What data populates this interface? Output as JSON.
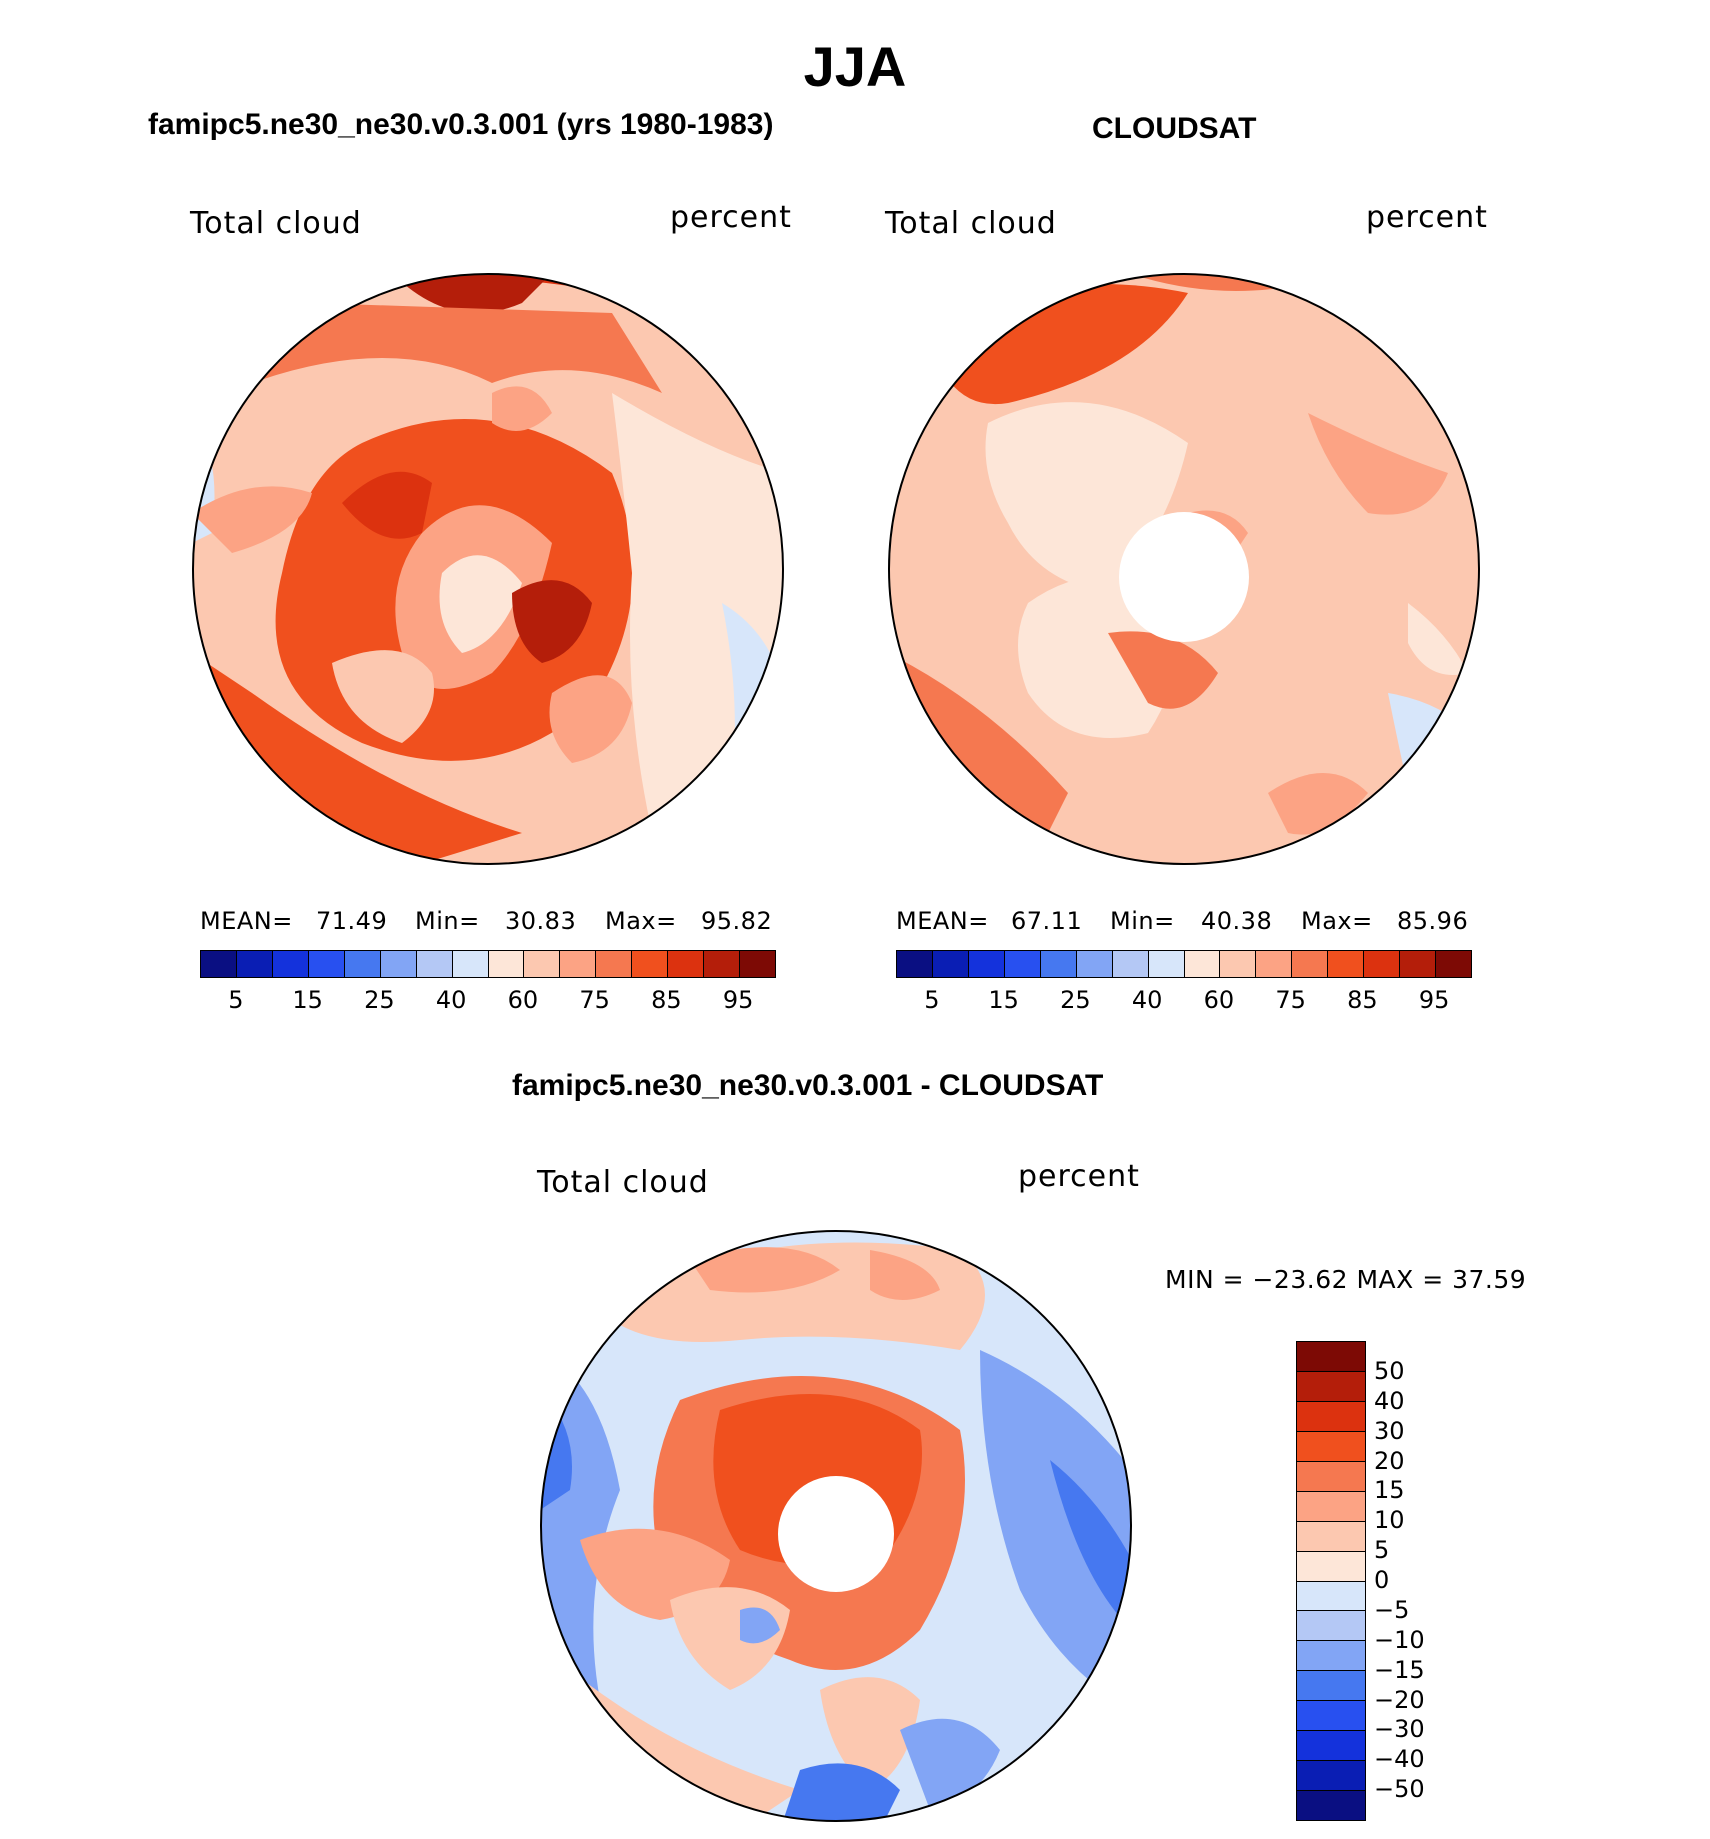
{
  "header": {
    "title": "JJA"
  },
  "panel_left": {
    "title": "famipc5.ne30_ne30.v0.3.001 (yrs 1980-1983)",
    "variable": "Total cloud",
    "units": "percent",
    "mean_label": "MEAN=",
    "mean": "71.49",
    "min_label": "Min=",
    "min": "30.83",
    "max_label": "Max=",
    "max": "95.82"
  },
  "panel_right": {
    "title": "CLOUDSAT",
    "variable": "Total cloud",
    "units": "percent",
    "mean_label": "MEAN=",
    "mean": "67.11",
    "min_label": "Min=",
    "min": "40.38",
    "max_label": "Max=",
    "max": "85.96"
  },
  "panel_diff": {
    "title": "famipc5.ne30_ne30.v0.3.001 - CLOUDSAT",
    "variable": "Total cloud",
    "units": "percent",
    "minmax_text": "MIN = −23.62 MAX =   37.59"
  },
  "colors": {
    "abs_scale": [
      "#0a0f82",
      "#0a1eb4",
      "#1432dc",
      "#2850f0",
      "#4678f0",
      "#82a5f5",
      "#b4c8f5",
      "#d7e6fa",
      "#fde6d8",
      "#fcc8b0",
      "#fca384",
      "#f57850",
      "#f0501e",
      "#dc320f",
      "#b41e0a",
      "#7d0a05"
    ],
    "diff_scale": [
      "#0a0f82",
      "#0a1eb4",
      "#1432dc",
      "#2850f0",
      "#4678f0",
      "#82a5f5",
      "#b4c8f5",
      "#d7e6fa",
      "#fde6d8",
      "#fcc8b0",
      "#fca384",
      "#f57850",
      "#f0501e",
      "#dc320f",
      "#b41e0a",
      "#7d0a05"
    ]
  },
  "chart_data": [
    {
      "type": "heatmap",
      "projection": "north polar stereographic",
      "title": "famipc5.ne30_ne30.v0.3.001 (yrs 1980-1983)",
      "variable": "Total cloud",
      "units": "percent",
      "levels": [
        5,
        10,
        15,
        20,
        25,
        30,
        40,
        50,
        60,
        70,
        75,
        80,
        85,
        90,
        95
      ],
      "tick_labels": [
        "5",
        "15",
        "25",
        "40",
        "60",
        "75",
        "85",
        "95"
      ],
      "mean": 71.49,
      "min": 30.83,
      "max": 95.82
    },
    {
      "type": "heatmap",
      "projection": "north polar stereographic",
      "title": "CLOUDSAT",
      "variable": "Total cloud",
      "units": "percent",
      "levels": [
        5,
        10,
        15,
        20,
        25,
        30,
        40,
        50,
        60,
        70,
        75,
        80,
        85,
        90,
        95
      ],
      "tick_labels": [
        "5",
        "15",
        "25",
        "40",
        "60",
        "75",
        "85",
        "95"
      ],
      "mean": 67.11,
      "min": 40.38,
      "max": 85.96
    },
    {
      "type": "heatmap",
      "projection": "north polar stereographic",
      "title": "famipc5.ne30_ne30.v0.3.001 - CLOUDSAT",
      "variable": "Total cloud",
      "units": "percent",
      "levels": [
        -50,
        -40,
        -30,
        -20,
        -15,
        -10,
        -5,
        0,
        5,
        10,
        15,
        20,
        30,
        40,
        50
      ],
      "tick_labels": [
        "50",
        "40",
        "30",
        "20",
        "15",
        "10",
        "5",
        "0",
        "−5",
        "−10",
        "−15",
        "−20",
        "−30",
        "−40",
        "−50"
      ],
      "min": -23.62,
      "max": 37.59
    }
  ]
}
